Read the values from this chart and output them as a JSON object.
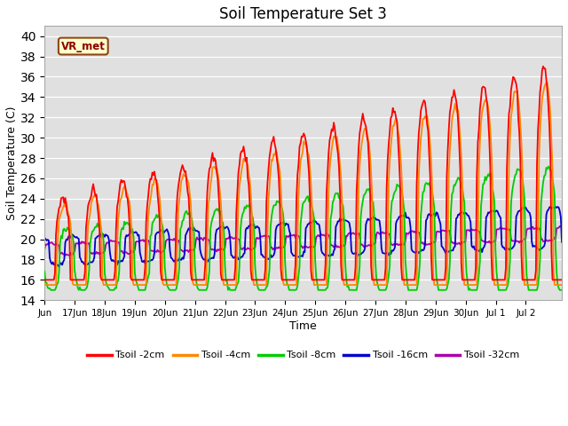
{
  "title": "Soil Temperature Set 3",
  "xlabel": "Time",
  "ylabel": "Soil Temperature (C)",
  "ylim": [
    14,
    41
  ],
  "yticks": [
    14,
    16,
    18,
    20,
    22,
    24,
    26,
    28,
    30,
    32,
    34,
    36,
    38,
    40
  ],
  "colors": {
    "Tsoil -2cm": "#ff0000",
    "Tsoil -4cm": "#ff8800",
    "Tsoil -8cm": "#00cc00",
    "Tsoil -16cm": "#0000cc",
    "Tsoil -32cm": "#aa00aa"
  },
  "bg_color": "#e0e0e0",
  "legend_box_color": "#ffffcc",
  "legend_box_edge": "#8b4513",
  "vr_met_text_color": "#8b0000",
  "start_day": 16.0,
  "end_day": 33.2,
  "base_temp": 17.8,
  "n_points": 500
}
